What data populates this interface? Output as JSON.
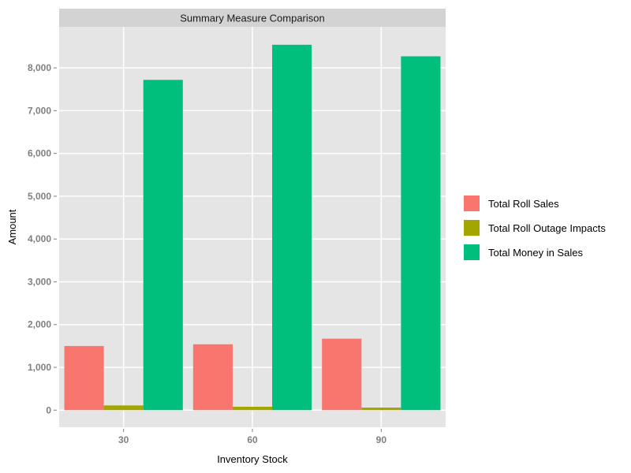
{
  "chart_data": {
    "type": "bar",
    "title": "Summary Measure Comparison",
    "xlabel": "Inventory Stock",
    "ylabel": "Amount",
    "categories": [
      "30",
      "60",
      "90"
    ],
    "series": [
      {
        "name": "Total Roll Sales",
        "color": "#F8766D",
        "values": [
          1500,
          1540,
          1670
        ]
      },
      {
        "name": "Total Roll Outage Impacts",
        "color": "#A3A500",
        "values": [
          110,
          80,
          60
        ]
      },
      {
        "name": "Total Money in Sales",
        "color": "#00BF7D",
        "values": [
          7720,
          8540,
          8270
        ]
      }
    ],
    "ylim": [
      -400,
      8960
    ],
    "yticks": [
      0,
      1000,
      2000,
      3000,
      4000,
      5000,
      6000,
      7000,
      8000
    ],
    "ytick_labels": [
      "0",
      "1,000",
      "2,000",
      "3,000",
      "4,000",
      "5,000",
      "6,000",
      "7,000",
      "8,000"
    ],
    "grid": true,
    "legend_position": "right",
    "colors": {
      "panel_background": "#E5E5E5",
      "strip_background": "#D3D3D3",
      "grid": "#FFFFFF"
    }
  }
}
